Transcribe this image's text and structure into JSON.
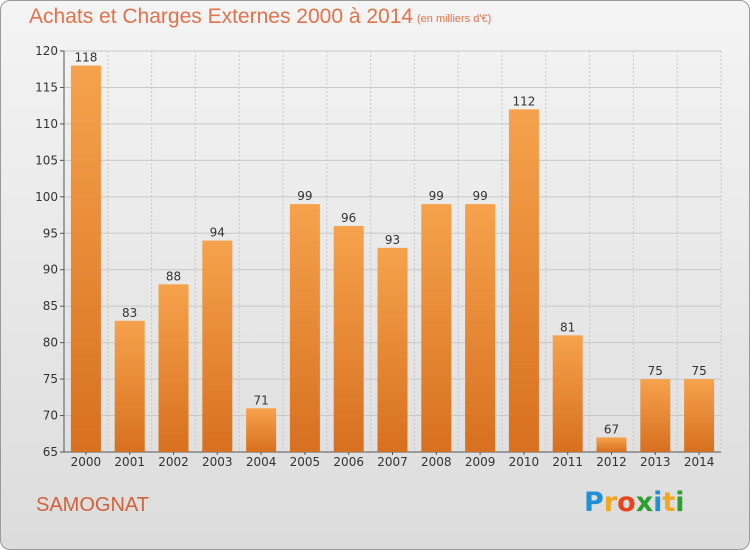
{
  "title": "Achats et Charges Externes 2000 à 2014",
  "subtitle": "(en milliers d'€)",
  "commune": "SAMOGNAT",
  "logo": {
    "letters": [
      "P",
      "r",
      "o",
      "x",
      "i",
      "t",
      "i"
    ],
    "colors": [
      "#1e90d8",
      "#f0a81e",
      "#e8451e",
      "#2ca02c",
      "#1e90d8",
      "#f0a81e",
      "#2ca02c"
    ]
  },
  "colors": {
    "bar_top": "#f6a24c",
    "bar_bottom": "#d7701f",
    "grid": "#c8c8c8",
    "axis": "#555555",
    "title": "#e0734a"
  },
  "chart_data": {
    "type": "bar",
    "categories": [
      "2000",
      "2001",
      "2002",
      "2003",
      "2004",
      "2005",
      "2006",
      "2007",
      "2008",
      "2009",
      "2010",
      "2011",
      "2012",
      "2013",
      "2014"
    ],
    "values": [
      118,
      83,
      88,
      94,
      71,
      99,
      96,
      93,
      99,
      99,
      112,
      81,
      67,
      75,
      75
    ],
    "title": "Achats et Charges Externes 2000 à 2014",
    "xlabel": "",
    "ylabel": "",
    "ylim": [
      65,
      120
    ],
    "yticks": [
      65,
      70,
      75,
      80,
      85,
      90,
      95,
      100,
      105,
      110,
      115,
      120
    ],
    "grid": true,
    "legend": "none"
  }
}
